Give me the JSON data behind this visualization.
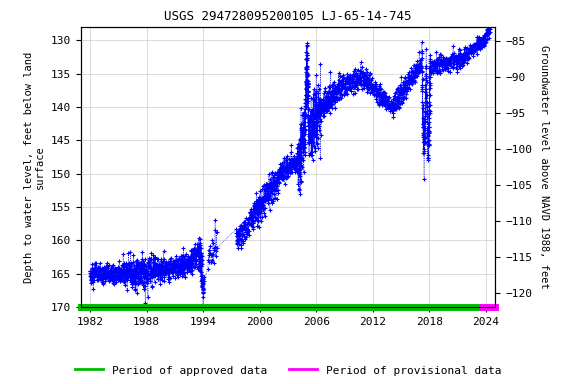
{
  "title": "USGS 294728095200105 LJ-65-14-745",
  "ylabel_left": "Depth to water level, feet below land\nsurface",
  "ylabel_right": "Groundwater level above NAVD 1988, feet",
  "ylim_left": [
    170,
    128
  ],
  "ylim_right": [
    -122,
    -83
  ],
  "xlim": [
    1981.0,
    2025.0
  ],
  "xticks": [
    1982,
    1988,
    1994,
    2000,
    2006,
    2012,
    2018,
    2024
  ],
  "yticks_left": [
    130,
    135,
    140,
    145,
    150,
    155,
    160,
    165,
    170
  ],
  "yticks_right": [
    -85,
    -90,
    -95,
    -100,
    -105,
    -110,
    -115,
    -120
  ],
  "marker_color": "#0000FF",
  "marker": "+",
  "legend_approved_color": "#00BB00",
  "legend_provisional_color": "#FF00FF",
  "background_color": "#ffffff",
  "grid_color": "#cccccc",
  "font_family": "monospace",
  "approved_end_year": 2023.7,
  "provisional_start_year": 2023.7,
  "data_end_year": 2024.5
}
